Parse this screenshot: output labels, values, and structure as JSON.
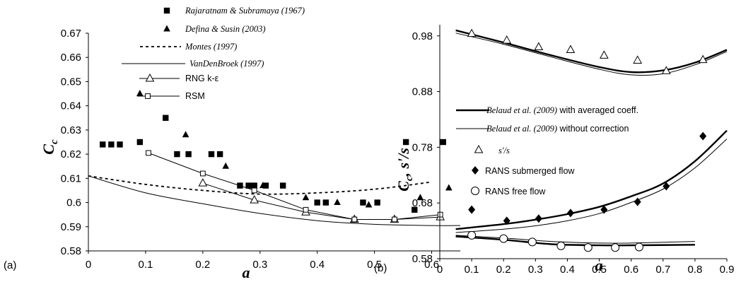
{
  "chart_data": [
    {
      "type": "scatter",
      "panel_label": "(a)",
      "xlabel": "a",
      "ylabel": "Cc",
      "xlim": [
        0,
        0.65
      ],
      "ylim": [
        0.58,
        0.67
      ],
      "xticks": [
        "0",
        "0.1",
        "0.2",
        "0.3",
        "0.4",
        "0.5",
        "0.6"
      ],
      "yticks": [
        "0.58",
        "0.59",
        "0.6",
        "0.61",
        "0.62",
        "0.63",
        "0.64",
        "0.65",
        "0.66",
        "0.67"
      ],
      "grid": false,
      "legend_position": "top-right",
      "series": [
        {
          "name": "Rajaratnam & Subramaya (1967)",
          "kind": "marker",
          "marker": "square-filled",
          "points": [
            [
              0.025,
              0.624
            ],
            [
              0.04,
              0.624
            ],
            [
              0.055,
              0.624
            ],
            [
              0.09,
              0.625
            ],
            [
              0.135,
              0.635
            ],
            [
              0.155,
              0.62
            ],
            [
              0.175,
              0.62
            ],
            [
              0.215,
              0.62
            ],
            [
              0.23,
              0.62
            ],
            [
              0.265,
              0.607
            ],
            [
              0.28,
              0.607
            ],
            [
              0.29,
              0.607
            ],
            [
              0.31,
              0.607
            ],
            [
              0.34,
              0.607
            ],
            [
              0.4,
              0.6
            ],
            [
              0.415,
              0.6
            ],
            [
              0.48,
              0.6
            ],
            [
              0.505,
              0.6
            ],
            [
              0.555,
              0.625
            ],
            [
              0.57,
              0.597
            ],
            [
              0.62,
              0.625
            ]
          ]
        },
        {
          "name": "Defina & Susin (2003)",
          "kind": "marker",
          "marker": "triangle-filled",
          "points": [
            [
              0.09,
              0.645
            ],
            [
              0.17,
              0.628
            ],
            [
              0.24,
              0.615
            ],
            [
              0.305,
              0.607
            ],
            [
              0.38,
              0.602
            ],
            [
              0.435,
              0.6
            ],
            [
              0.49,
              0.599
            ],
            [
              0.58,
              0.602
            ],
            [
              0.63,
              0.606
            ]
          ]
        },
        {
          "name": "Montes (1997)",
          "kind": "line",
          "style": "dashed",
          "points": [
            [
              0,
              0.611
            ],
            [
              0.1,
              0.6075
            ],
            [
              0.2,
              0.605
            ],
            [
              0.3,
              0.6035
            ],
            [
              0.4,
              0.604
            ],
            [
              0.5,
              0.6055
            ],
            [
              0.6,
              0.6085
            ]
          ]
        },
        {
          "name": "VanDenBroek (1997)",
          "kind": "line",
          "style": "solid",
          "points": [
            [
              0,
              0.611
            ],
            [
              0.1,
              0.604
            ],
            [
              0.2,
              0.5995
            ],
            [
              0.3,
              0.5955
            ],
            [
              0.4,
              0.5925
            ],
            [
              0.5,
              0.591
            ],
            [
              0.6,
              0.5905
            ],
            [
              0.65,
              0.5905
            ]
          ]
        },
        {
          "name": "RNG k-ε",
          "kind": "line-marker",
          "marker": "triangle-open",
          "points": [
            [
              0.2,
              0.608
            ],
            [
              0.29,
              0.601
            ],
            [
              0.38,
              0.596
            ],
            [
              0.465,
              0.593
            ],
            [
              0.535,
              0.593
            ],
            [
              0.615,
              0.594
            ]
          ]
        },
        {
          "name": "RSM",
          "kind": "line-marker",
          "marker": "square-open",
          "points": [
            [
              0.105,
              0.6205
            ],
            [
              0.2,
              0.612
            ],
            [
              0.29,
              0.605
            ],
            [
              0.38,
              0.597
            ],
            [
              0.465,
              0.593
            ],
            [
              0.535,
              0.593
            ],
            [
              0.615,
              0.595
            ]
          ]
        }
      ]
    },
    {
      "type": "scatter",
      "panel_label": "(b)",
      "xlabel": "a",
      "ylabel": "Cc, s'/s",
      "xlim": [
        0,
        0.9
      ],
      "ylim": [
        0.58,
        1.0
      ],
      "xticks": [
        "0",
        "0.1",
        "0.2",
        "0.3",
        "0.4",
        "0.5",
        "0.6",
        "0.7",
        "0.8",
        "0.9"
      ],
      "yticks": [
        "0.58",
        "0.68",
        "0.78",
        "0.88",
        "0.98"
      ],
      "grid": false,
      "legend_position": "center",
      "series": [
        {
          "name": "Belaud et al. (2009) with averaged coeff.",
          "kind": "line",
          "style": "thick",
          "curves": [
            [
              [
                0.05,
                0.99
              ],
              [
                0.2,
                0.968
              ],
              [
                0.35,
                0.945
              ],
              [
                0.5,
                0.924
              ],
              [
                0.6,
                0.915
              ],
              [
                0.7,
                0.918
              ],
              [
                0.8,
                0.932
              ],
              [
                0.9,
                0.955
              ]
            ],
            [
              [
                0.05,
                0.633
              ],
              [
                0.2,
                0.642
              ],
              [
                0.3,
                0.65
              ],
              [
                0.4,
                0.66
              ],
              [
                0.5,
                0.673
              ],
              [
                0.6,
                0.692
              ],
              [
                0.7,
                0.715
              ],
              [
                0.8,
                0.755
              ],
              [
                0.9,
                0.81
              ]
            ],
            [
              [
                0.05,
                0.62
              ],
              [
                0.2,
                0.614
              ],
              [
                0.35,
                0.606
              ],
              [
                0.5,
                0.604
              ],
              [
                0.6,
                0.604
              ],
              [
                0.8,
                0.605
              ]
            ]
          ]
        },
        {
          "name": "Belaud et al. (2009) without correction",
          "kind": "line",
          "style": "thin",
          "curves": [
            [
              [
                0.05,
                0.985
              ],
              [
                0.2,
                0.965
              ],
              [
                0.35,
                0.942
              ],
              [
                0.5,
                0.92
              ],
              [
                0.6,
                0.91
              ],
              [
                0.7,
                0.912
              ],
              [
                0.8,
                0.928
              ],
              [
                0.9,
                0.952
              ]
            ],
            [
              [
                0.05,
                0.627
              ],
              [
                0.2,
                0.633
              ],
              [
                0.3,
                0.639
              ],
              [
                0.4,
                0.648
              ],
              [
                0.5,
                0.661
              ],
              [
                0.6,
                0.681
              ],
              [
                0.7,
                0.705
              ],
              [
                0.8,
                0.743
              ],
              [
                0.9,
                0.795
              ]
            ],
            [
              [
                0.05,
                0.622
              ],
              [
                0.2,
                0.617
              ],
              [
                0.35,
                0.611
              ],
              [
                0.5,
                0.608
              ],
              [
                0.6,
                0.608
              ],
              [
                0.8,
                0.611
              ]
            ]
          ]
        },
        {
          "name": "s'/s",
          "kind": "marker",
          "marker": "triangle-open",
          "points": [
            [
              0.1,
              0.984
            ],
            [
              0.21,
              0.972
            ],
            [
              0.31,
              0.96
            ],
            [
              0.41,
              0.955
            ],
            [
              0.515,
              0.945
            ],
            [
              0.62,
              0.936
            ],
            [
              0.71,
              0.917
            ],
            [
              0.825,
              0.937
            ]
          ]
        },
        {
          "name": "RANS submerged flow",
          "kind": "marker",
          "marker": "diamond-filled",
          "points": [
            [
              0.1,
              0.668
            ],
            [
              0.21,
              0.648
            ],
            [
              0.31,
              0.652
            ],
            [
              0.41,
              0.662
            ],
            [
              0.515,
              0.668
            ],
            [
              0.62,
              0.682
            ],
            [
              0.71,
              0.71
            ],
            [
              0.825,
              0.8
            ]
          ]
        },
        {
          "name": "RANS free flow",
          "kind": "marker",
          "marker": "circle-open",
          "points": [
            [
              0.1,
              0.622
            ],
            [
              0.2,
              0.616
            ],
            [
              0.29,
              0.61
            ],
            [
              0.38,
              0.603
            ],
            [
              0.465,
              0.6
            ],
            [
              0.55,
              0.6
            ],
            [
              0.625,
              0.601
            ]
          ]
        }
      ]
    }
  ]
}
